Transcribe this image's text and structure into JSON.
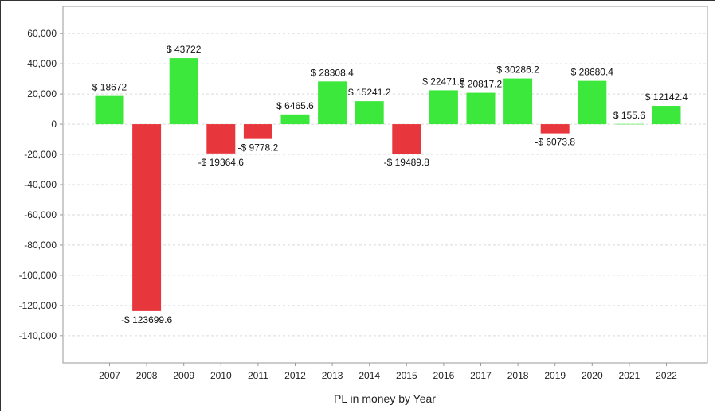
{
  "chart_data": {
    "type": "bar",
    "title": "",
    "xlabel": "PL in money by Year",
    "ylabel": "",
    "ylim": [
      -158000,
      78000
    ],
    "yticks": [
      60000,
      40000,
      20000,
      0,
      -20000,
      -40000,
      -60000,
      -80000,
      -100000,
      -120000,
      -140000
    ],
    "ytick_labels": [
      "60,000",
      "40,000",
      "20,000",
      "0",
      "-20,000",
      "-40,000",
      "-60,000",
      "-80,000",
      "-100,000",
      "-120,000",
      "-140,000"
    ],
    "grid": true,
    "legend": "none",
    "categories": [
      "2007",
      "2008",
      "2009",
      "2010",
      "2011",
      "2012",
      "2013",
      "2014",
      "2015",
      "2016",
      "2017",
      "2018",
      "2019",
      "2020",
      "2021",
      "2022"
    ],
    "values": [
      18672,
      -123699.6,
      43722,
      -19364.6,
      -9778.2,
      6465.6,
      28308.4,
      15241.2,
      -19489.8,
      22471.8,
      20817.2,
      30286.2,
      -6073.8,
      28680.4,
      155.6,
      12142.4
    ],
    "data_labels": [
      "$ 18672",
      "-$ 123699.6",
      "$ 43722",
      "-$ 19364.6",
      "-$ 9778.2",
      "$ 6465.6",
      "$ 28308.4",
      "$ 15241.2",
      "-$ 19489.8",
      "$ 22471.8",
      "$ 20817.2",
      "$ 30286.2",
      "-$ 6073.8",
      "$ 28680.4",
      "$ 155.6",
      "$ 12142.4"
    ],
    "colors": {
      "positive": "#3de83d",
      "negative": "#e8363d",
      "grid": "#d9d9d9",
      "axis": "#999999"
    }
  }
}
